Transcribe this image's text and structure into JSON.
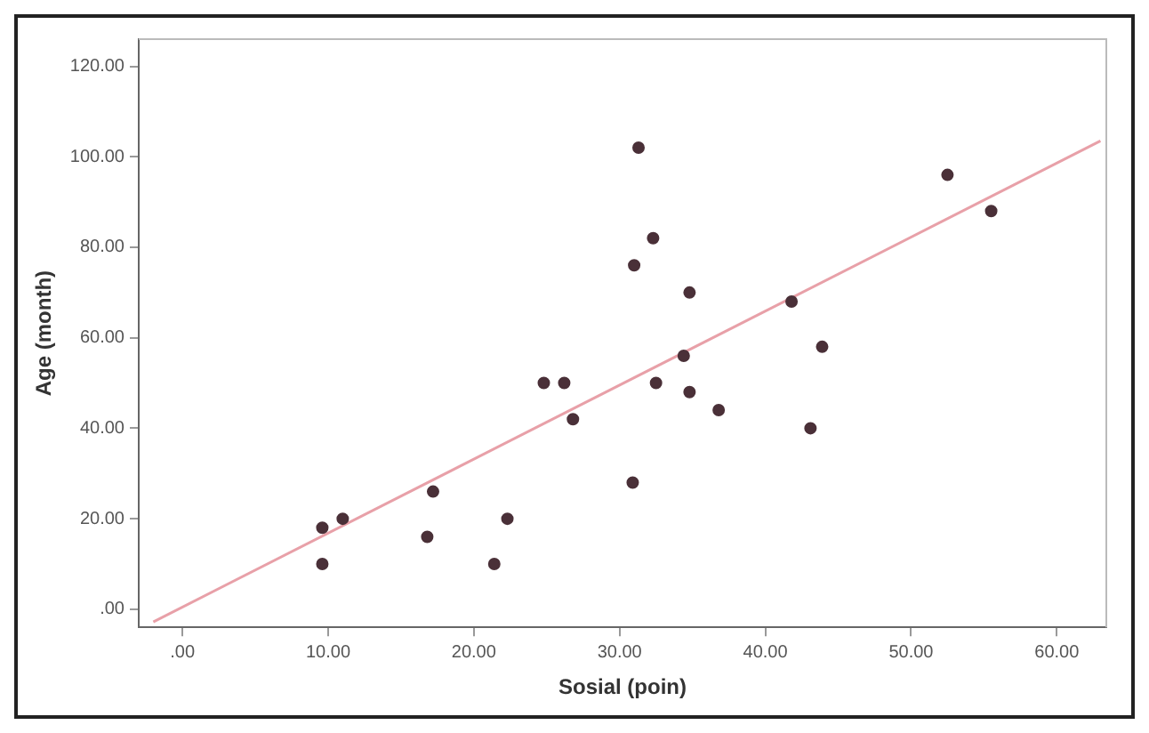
{
  "chart_data": {
    "type": "scatter",
    "xlabel": "Sosial (poin)",
    "ylabel": "Age (month)",
    "xlim": [
      -3,
      63.4
    ],
    "ylim": [
      -4,
      126
    ],
    "xticks": [
      {
        "value": 0,
        "label": ".00"
      },
      {
        "value": 10,
        "label": "10.00"
      },
      {
        "value": 20,
        "label": "20.00"
      },
      {
        "value": 30,
        "label": "30.00"
      },
      {
        "value": 40,
        "label": "40.00"
      },
      {
        "value": 50,
        "label": "50.00"
      },
      {
        "value": 60,
        "label": "60.00"
      }
    ],
    "yticks": [
      {
        "value": 0,
        "label": ".00"
      },
      {
        "value": 20,
        "label": "20.00"
      },
      {
        "value": 40,
        "label": "40.00"
      },
      {
        "value": 60,
        "label": "60.00"
      },
      {
        "value": 80,
        "label": "80.00"
      },
      {
        "value": 100,
        "label": "100.00"
      },
      {
        "value": 120,
        "label": "120.00"
      }
    ],
    "grid": false,
    "legend": false,
    "series": [
      {
        "marker": "circle",
        "color": "#4a3038",
        "x": [
          31.3,
          32.3,
          31.0,
          34.8,
          41.8,
          43.9,
          34.4,
          24.8,
          26.2,
          32.5,
          34.8,
          26.8,
          36.8,
          43.1,
          30.9,
          17.2,
          11.0,
          9.6,
          22.3,
          16.8,
          9.6,
          21.4,
          52.5,
          55.5
        ],
        "values": [
          102,
          82,
          76,
          70,
          68,
          58,
          56,
          50,
          50,
          50,
          48,
          42,
          44,
          40,
          28,
          26,
          20,
          18,
          20,
          16,
          10,
          10,
          96,
          88
        ]
      },
      {
        "type": "line",
        "marker": "none",
        "color": "#e8a0a8",
        "x": [
          -2,
          63
        ],
        "values": [
          -2.8,
          103.5
        ]
      }
    ]
  }
}
